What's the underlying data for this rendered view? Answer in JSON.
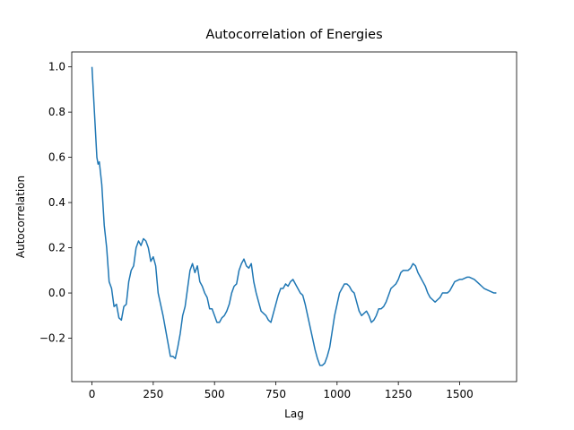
{
  "chart_data": {
    "type": "line",
    "title": "Autocorrelation of Energies",
    "xlabel": "Lag",
    "ylabel": "Autocorrelation",
    "color": "#1f77b4",
    "x": [
      0,
      10,
      20,
      25,
      30,
      40,
      50,
      60,
      70,
      80,
      90,
      100,
      110,
      120,
      130,
      140,
      150,
      160,
      170,
      180,
      190,
      200,
      210,
      220,
      230,
      240,
      250,
      260,
      270,
      280,
      290,
      300,
      310,
      320,
      330,
      340,
      350,
      360,
      370,
      380,
      390,
      400,
      410,
      420,
      430,
      440,
      450,
      460,
      470,
      480,
      490,
      500,
      510,
      520,
      530,
      540,
      550,
      560,
      570,
      580,
      590,
      600,
      610,
      620,
      630,
      640,
      650,
      660,
      670,
      680,
      690,
      700,
      710,
      720,
      730,
      740,
      750,
      760,
      770,
      780,
      790,
      800,
      810,
      820,
      830,
      840,
      850,
      860,
      870,
      880,
      890,
      900,
      910,
      920,
      930,
      940,
      950,
      960,
      970,
      980,
      990,
      1000,
      1010,
      1020,
      1030,
      1040,
      1050,
      1060,
      1070,
      1080,
      1090,
      1100,
      1110,
      1120,
      1130,
      1140,
      1150,
      1160,
      1170,
      1180,
      1190,
      1200,
      1210,
      1220,
      1230,
      1240,
      1250,
      1260,
      1270,
      1280,
      1290,
      1300,
      1310,
      1320,
      1330,
      1340,
      1350,
      1360,
      1370,
      1380,
      1390,
      1400,
      1410,
      1420,
      1430,
      1440,
      1450,
      1460,
      1470,
      1480,
      1490,
      1500,
      1510,
      1520,
      1530,
      1540,
      1550,
      1560,
      1570,
      1580,
      1590,
      1600,
      1610,
      1620,
      1630,
      1640,
      1650
    ],
    "values": [
      1.0,
      0.8,
      0.6,
      0.57,
      0.58,
      0.48,
      0.3,
      0.2,
      0.05,
      0.02,
      -0.06,
      -0.05,
      -0.11,
      -0.12,
      -0.06,
      -0.05,
      0.05,
      0.1,
      0.12,
      0.2,
      0.23,
      0.21,
      0.24,
      0.23,
      0.2,
      0.14,
      0.16,
      0.12,
      0.0,
      -0.05,
      -0.1,
      -0.16,
      -0.22,
      -0.28,
      -0.28,
      -0.29,
      -0.24,
      -0.18,
      -0.1,
      -0.06,
      0.02,
      0.1,
      0.13,
      0.09,
      0.12,
      0.05,
      0.03,
      0.0,
      -0.02,
      -0.07,
      -0.07,
      -0.1,
      -0.13,
      -0.13,
      -0.11,
      -0.1,
      -0.08,
      -0.05,
      0.0,
      0.03,
      0.04,
      0.1,
      0.13,
      0.15,
      0.12,
      0.11,
      0.13,
      0.05,
      0.0,
      -0.04,
      -0.08,
      -0.09,
      -0.1,
      -0.12,
      -0.13,
      -0.09,
      -0.05,
      -0.01,
      0.02,
      0.02,
      0.04,
      0.03,
      0.05,
      0.06,
      0.04,
      0.02,
      0.0,
      -0.01,
      -0.05,
      -0.1,
      -0.15,
      -0.2,
      -0.25,
      -0.29,
      -0.32,
      -0.32,
      -0.31,
      -0.28,
      -0.24,
      -0.17,
      -0.1,
      -0.05,
      0.0,
      0.02,
      0.04,
      0.04,
      0.03,
      0.01,
      0.0,
      -0.04,
      -0.08,
      -0.1,
      -0.09,
      -0.08,
      -0.1,
      -0.13,
      -0.12,
      -0.1,
      -0.07,
      -0.07,
      -0.06,
      -0.04,
      -0.01,
      0.02,
      0.03,
      0.04,
      0.06,
      0.09,
      0.1,
      0.1,
      0.1,
      0.11,
      0.13,
      0.12,
      0.09,
      0.07,
      0.05,
      0.03,
      0.0,
      -0.02,
      -0.03,
      -0.04,
      -0.03,
      -0.02,
      0.0,
      0.0,
      0.0,
      0.01,
      0.03,
      0.05,
      0.055,
      0.06,
      0.06,
      0.065,
      0.07,
      0.07,
      0.065,
      0.06,
      0.05,
      0.04,
      0.03,
      0.02,
      0.015,
      0.01,
      0.005,
      0.0,
      0.0
    ],
    "xlim": [
      -82.5,
      1732.5
    ],
    "ylim": [
      -0.392,
      1.066
    ],
    "xticks": [
      0,
      250,
      500,
      750,
      1000,
      1250,
      1500
    ],
    "yticks": [
      {
        "value": -0.2,
        "label": "−0.2"
      },
      {
        "value": 0,
        "label": "0.0"
      },
      0.2,
      0.4,
      0.6,
      0.8,
      {
        "value": 1,
        "label": "1.0"
      }
    ]
  }
}
